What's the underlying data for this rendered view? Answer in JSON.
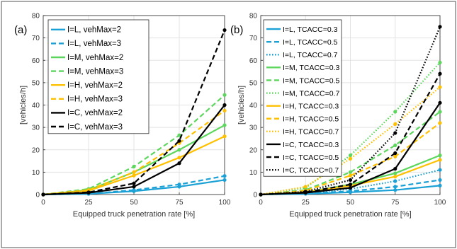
{
  "chart_data": [
    {
      "panel_label": "(a)",
      "type": "line",
      "xlabel": "Equipped truck penetration rate [%]",
      "ylabel": "[vehicles/h]",
      "xlim": [
        0,
        100
      ],
      "ylim": [
        0,
        80
      ],
      "xticks": [
        "0",
        "25",
        "50",
        "75",
        "100"
      ],
      "yticks": [
        "0",
        "10",
        "20",
        "30",
        "40",
        "50",
        "60",
        "70",
        "80"
      ],
      "grid": true,
      "legend_position": "top-left",
      "x": [
        0,
        25,
        50,
        75,
        100
      ],
      "series": [
        {
          "name": "I=L, vehMax=2",
          "color": "#1ba1d6",
          "dash": "solid",
          "values": [
            0,
            0.3,
            1.5,
            3.5,
            6.5
          ]
        },
        {
          "name": "I=L, vehMax=3",
          "color": "#1ba1d6",
          "dash": "dashed",
          "values": [
            0,
            0.3,
            2.0,
            4.5,
            8.3
          ]
        },
        {
          "name": "I=M, vehMax=2",
          "color": "#5cd65c",
          "dash": "solid",
          "values": [
            0,
            2.0,
            10.0,
            20.0,
            31.0
          ]
        },
        {
          "name": "I=M, vehMax=3",
          "color": "#5cd65c",
          "dash": "dashed",
          "values": [
            0,
            2.5,
            12.5,
            26.5,
            44.5
          ]
        },
        {
          "name": "I=H, vehMax=2",
          "color": "#ffc000",
          "dash": "solid",
          "values": [
            0,
            1.7,
            8.5,
            16.5,
            26.0
          ]
        },
        {
          "name": "I=H, vehMax=3",
          "color": "#ffc000",
          "dash": "dashed",
          "values": [
            0,
            2.0,
            10.0,
            23.0,
            37.5
          ]
        },
        {
          "name": "I=C, vehMax=2",
          "color": "#000000",
          "dash": "solid",
          "values": [
            0,
            0.8,
            3.5,
            14.0,
            40.0
          ]
        },
        {
          "name": "I=C, vehMax=3",
          "color": "#000000",
          "dash": "dashed",
          "values": [
            0,
            1.0,
            5.0,
            24.0,
            73.5
          ]
        }
      ]
    },
    {
      "panel_label": "(b)",
      "type": "line",
      "xlabel": "Equipped truck penetration rate [%]",
      "ylabel": "[vehicles/h]",
      "xlim": [
        0,
        100
      ],
      "ylim": [
        0,
        80
      ],
      "xticks": [
        "0",
        "25",
        "50",
        "75",
        "100"
      ],
      "yticks": [
        "0",
        "10",
        "20",
        "30",
        "40",
        "50",
        "60",
        "70",
        "80"
      ],
      "grid": true,
      "legend_position": "top-left",
      "x": [
        0,
        25,
        50,
        75,
        100
      ],
      "series": [
        {
          "name": "I=L, TCACC=0.3",
          "color": "#1ba1d6",
          "dash": "solid",
          "values": [
            0,
            0.3,
            1.0,
            2.0,
            4.0
          ]
        },
        {
          "name": "I=L, TCACC=0.5",
          "color": "#1ba1d6",
          "dash": "dashed",
          "values": [
            0,
            0.4,
            1.5,
            3.5,
            6.5
          ]
        },
        {
          "name": "I=L, TCACC=0.7",
          "color": "#1ba1d6",
          "dash": "dotted",
          "values": [
            0,
            0.5,
            2.5,
            6.0,
            11.0
          ]
        },
        {
          "name": "I=M, TCACC=0.3",
          "color": "#5cd65c",
          "dash": "solid",
          "values": [
            0,
            1.0,
            4.5,
            9.5,
            17.5
          ]
        },
        {
          "name": "I=M, TCACC=0.5",
          "color": "#5cd65c",
          "dash": "dashed",
          "values": [
            0,
            2.0,
            10.0,
            22.0,
            37.0
          ]
        },
        {
          "name": "I=M, TCACC=0.7",
          "color": "#5cd65c",
          "dash": "dotted",
          "values": [
            0,
            3.0,
            17.5,
            37.0,
            59.0
          ]
        },
        {
          "name": "I=H, TCACC=0.3",
          "color": "#ffc000",
          "dash": "solid",
          "values": [
            0,
            1.0,
            4.0,
            8.0,
            15.5
          ]
        },
        {
          "name": "I=H, TCACC=0.5",
          "color": "#ffc000",
          "dash": "dashed",
          "values": [
            0,
            1.7,
            8.5,
            17.0,
            32.0
          ]
        },
        {
          "name": "I=H, TCACC=0.7",
          "color": "#ffc000",
          "dash": "dotted",
          "values": [
            0,
            3.5,
            16.0,
            31.5,
            48.0
          ]
        },
        {
          "name": "I=C, TCACC=0.3",
          "color": "#000000",
          "dash": "solid",
          "values": [
            0,
            0.8,
            3.0,
            11.5,
            41.0
          ]
        },
        {
          "name": "I=C, TCACC=0.5",
          "color": "#000000",
          "dash": "dashed",
          "values": [
            0,
            1.0,
            4.5,
            18.5,
            54.0
          ]
        },
        {
          "name": "I=C, TCACC=0.7",
          "color": "#000000",
          "dash": "dotted",
          "values": [
            0,
            1.3,
            6.5,
            27.5,
            75.0
          ]
        }
      ]
    }
  ]
}
